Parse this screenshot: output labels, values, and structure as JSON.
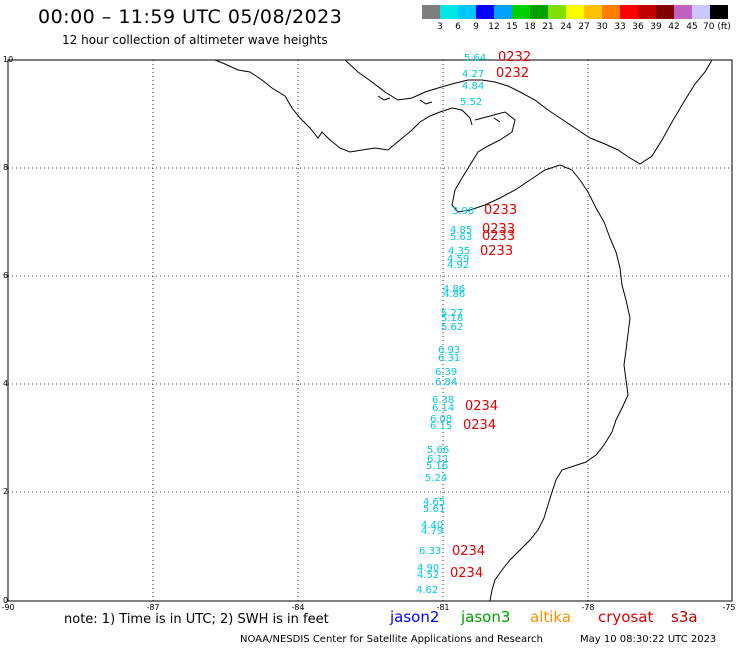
{
  "title": "00:00 – 11:59 UTC 05/08/2023",
  "subtitle": "12 hour collection of altimeter wave heights",
  "colorbar": {
    "labels": [
      "3",
      "6",
      "9",
      "12",
      "15",
      "18",
      "21",
      "24",
      "27",
      "30",
      "33",
      "36",
      "39",
      "42",
      "45",
      "70 (ft)"
    ],
    "colors": [
      "#7f7f7f",
      "#00e6e6",
      "#00c8ff",
      "#0000ff",
      "#00a0ff",
      "#00d000",
      "#00a000",
      "#80e000",
      "#ffff00",
      "#ffc000",
      "#ff8000",
      "#ff0000",
      "#c00000",
      "#800000",
      "#c060c0",
      "#c8c8ff",
      "#000000"
    ]
  },
  "axes": {
    "y_ticks": [
      "0",
      "2",
      "4",
      "6",
      "8",
      "10"
    ],
    "x_ticks": [
      "-90",
      "-87",
      "-84",
      "-81",
      "-78",
      "-75"
    ]
  },
  "wave_heights": [
    "5.64",
    "4.27",
    "4.84",
    "5.52",
    "3.98",
    "4.85",
    "5.63",
    "4.35",
    "4.59",
    "4.92",
    "4.86",
    "4.86",
    "5.27",
    "5.18",
    "5.62",
    "6.93",
    "6.31",
    "6.39",
    "6.84",
    "6.38",
    "6.14",
    "6.08",
    "6.15",
    "5.66",
    "6.11",
    "5.16",
    "5.24",
    "4.65",
    "5.61",
    "4.40",
    "4.79",
    "6.33",
    "4.90",
    "4.52",
    "4.62"
  ],
  "pass_labels": [
    "0232",
    "0232",
    "0233",
    "0233",
    "0233",
    "0233",
    "0234",
    "0234",
    "0234",
    "0234"
  ],
  "note": "note: 1) Time is in UTC; 2) SWH is in feet",
  "satellites": [
    {
      "name": "jason2",
      "color": "#0000ff"
    },
    {
      "name": "jason3",
      "color": "#00a000"
    },
    {
      "name": "altika",
      "color": "#ff9000"
    },
    {
      "name": "cryosat",
      "color": "#e00000"
    },
    {
      "name": "s3a",
      "color": "#c00000"
    }
  ],
  "footer_left": "NOAA/NESDIS Center for Satellite Applications and Research",
  "footer_right": "May 10 08:30:22 UTC 2023"
}
